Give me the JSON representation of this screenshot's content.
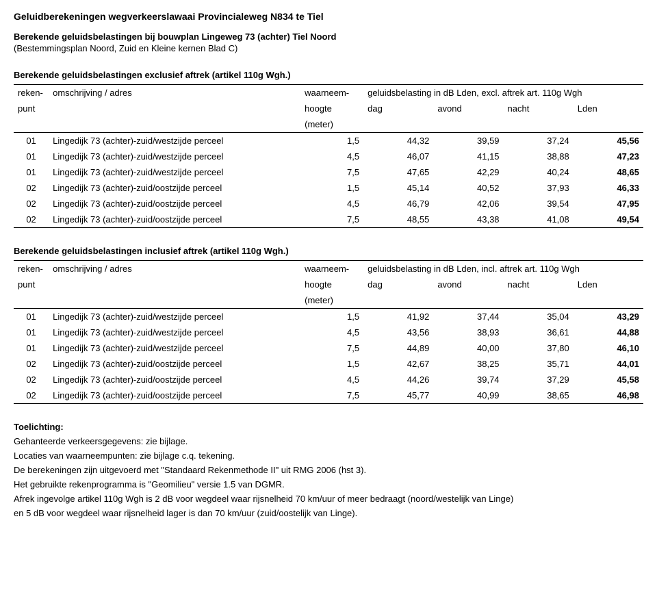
{
  "title": "Geluidberekeningen wegverkeerslawaai Provincialeweg N834 te Tiel",
  "subtitle": "Berekende geluidsbelastingen bij bouwplan Lingeweg 73 (achter) Tiel Noord",
  "subtitle2": "(Bestemmingsplan Noord, Zuid en Kleine kernen Blad C)",
  "table1": {
    "heading": "Berekende geluidsbelastingen exclusief aftrek (artikel 110g Wgh.)",
    "hdr_reken": "reken-",
    "hdr_reken2": "punt",
    "hdr_omsch": "omschrijving / adres",
    "hdr_waarn": "waarneem-",
    "hdr_waarn2": "hoogte",
    "hdr_waarn3": "(meter)",
    "hdr_group": "geluidsbelasting in dB Lden, excl. aftrek art. 110g Wgh",
    "hdr_dag": "dag",
    "hdr_avond": "avond",
    "hdr_nacht": "nacht",
    "hdr_lden": "Lden",
    "rows": [
      {
        "p": "01",
        "o": "Lingedijk 73 (achter)-zuid/westzijde perceel",
        "h": "1,5",
        "d": "44,32",
        "a": "39,59",
        "n": "37,24",
        "l": "45,56"
      },
      {
        "p": "01",
        "o": "Lingedijk 73 (achter)-zuid/westzijde perceel",
        "h": "4,5",
        "d": "46,07",
        "a": "41,15",
        "n": "38,88",
        "l": "47,23"
      },
      {
        "p": "01",
        "o": "Lingedijk 73 (achter)-zuid/westzijde perceel",
        "h": "7,5",
        "d": "47,65",
        "a": "42,29",
        "n": "40,24",
        "l": "48,65"
      },
      {
        "p": "02",
        "o": "Lingedijk 73 (achter)-zuid/oostzijde perceel",
        "h": "1,5",
        "d": "45,14",
        "a": "40,52",
        "n": "37,93",
        "l": "46,33"
      },
      {
        "p": "02",
        "o": "Lingedijk 73 (achter)-zuid/oostzijde perceel",
        "h": "4,5",
        "d": "46,79",
        "a": "42,06",
        "n": "39,54",
        "l": "47,95"
      },
      {
        "p": "02",
        "o": "Lingedijk 73 (achter)-zuid/oostzijde perceel",
        "h": "7,5",
        "d": "48,55",
        "a": "43,38",
        "n": "41,08",
        "l": "49,54"
      }
    ]
  },
  "table2": {
    "heading": "Berekende geluidsbelastingen inclusief aftrek (artikel 110g Wgh.)",
    "hdr_reken": "reken-",
    "hdr_reken2": "punt",
    "hdr_omsch": "omschrijving / adres",
    "hdr_waarn": "waarneem-",
    "hdr_waarn2": "hoogte",
    "hdr_waarn3": "(meter)",
    "hdr_group": "geluidsbelasting in dB Lden, incl. aftrek art. 110g Wgh",
    "hdr_dag": "dag",
    "hdr_avond": "avond",
    "hdr_nacht": "nacht",
    "hdr_lden": "Lden",
    "rows": [
      {
        "p": "01",
        "o": "Lingedijk 73 (achter)-zuid/westzijde perceel",
        "h": "1,5",
        "d": "41,92",
        "a": "37,44",
        "n": "35,04",
        "l": "43,29"
      },
      {
        "p": "01",
        "o": "Lingedijk 73 (achter)-zuid/westzijde perceel",
        "h": "4,5",
        "d": "43,56",
        "a": "38,93",
        "n": "36,61",
        "l": "44,88"
      },
      {
        "p": "01",
        "o": "Lingedijk 73 (achter)-zuid/westzijde perceel",
        "h": "7,5",
        "d": "44,89",
        "a": "40,00",
        "n": "37,80",
        "l": "46,10"
      },
      {
        "p": "02",
        "o": "Lingedijk 73 (achter)-zuid/oostzijde perceel",
        "h": "1,5",
        "d": "42,67",
        "a": "38,25",
        "n": "35,71",
        "l": "44,01"
      },
      {
        "p": "02",
        "o": "Lingedijk 73 (achter)-zuid/oostzijde perceel",
        "h": "4,5",
        "d": "44,26",
        "a": "39,74",
        "n": "37,29",
        "l": "45,58"
      },
      {
        "p": "02",
        "o": "Lingedijk 73 (achter)-zuid/oostzijde perceel",
        "h": "7,5",
        "d": "45,77",
        "a": "40,99",
        "n": "38,65",
        "l": "46,98"
      }
    ]
  },
  "toelichting": {
    "head": "Toelichting:",
    "lines": [
      "Gehanteerde verkeersgegevens: zie bijlage.",
      "Locaties van waarneempunten: zie bijlage c.q. tekening.",
      "De berekeningen zijn uitgevoerd met \"Standaard Rekenmethode II\" uit RMG 2006 (hst 3).",
      "Het gebruikte rekenprogramma is \"Geomilieu\" versie 1.5 van DGMR.",
      "Afrek ingevolge artikel 110g Wgh is 2 dB voor wegdeel waar rijsnelheid 70 km/uur of meer bedraagt (noord/westelijk van Linge)",
      "en 5 dB voor wegdeel waar rijsnelheid lager is dan 70 km/uur (zuid/oostelijk van Linge)."
    ]
  }
}
